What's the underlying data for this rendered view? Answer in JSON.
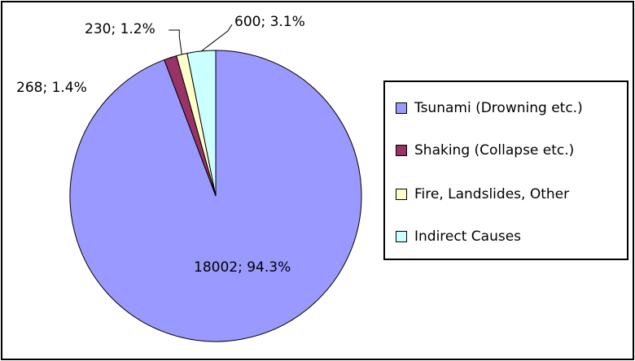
{
  "chart_data": {
    "type": "pie",
    "title": "",
    "categories": [
      "Tsunami (Drowning etc.)",
      "Shaking (Collapse etc.)",
      "Fire, Landslides, Other",
      "Indirect Causes"
    ],
    "values": [
      18002,
      268,
      230,
      600
    ],
    "percentages": [
      94.3,
      1.4,
      1.2,
      3.1
    ],
    "colors": [
      "#9999ff",
      "#993366",
      "#ffffcc",
      "#ccffff"
    ],
    "data_labels": [
      "18002; 94.3%",
      "268; 1.4%",
      "230; 1.2%",
      "600; 3.1%"
    ],
    "legend": {
      "placement": "right",
      "items": [
        {
          "label": "Tsunami (Drowning etc.)",
          "color": "#9999ff"
        },
        {
          "label": "Shaking (Collapse etc.)",
          "color": "#993366"
        },
        {
          "label": "Fire, Landslides, Other",
          "color": "#ffffcc"
        },
        {
          "label": "Indirect Causes",
          "color": "#ccffff"
        }
      ]
    }
  }
}
